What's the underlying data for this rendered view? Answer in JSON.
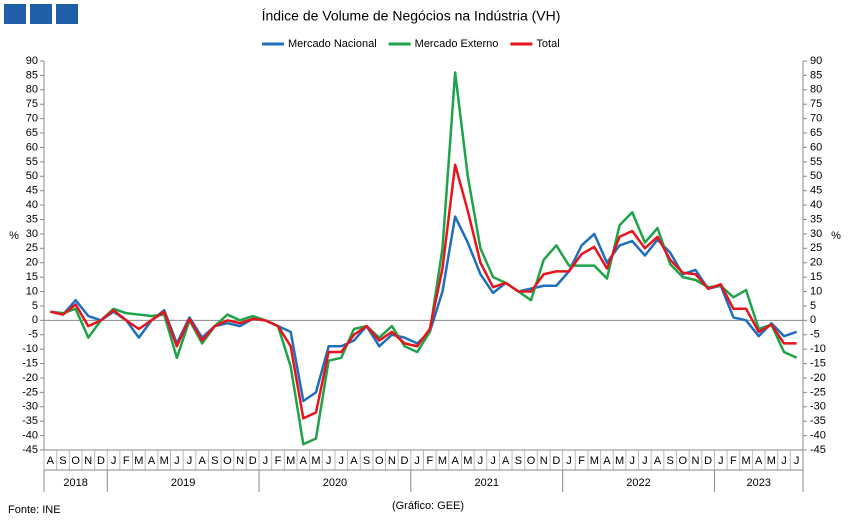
{
  "chart_data": {
    "type": "line",
    "title": "Índice de Volume de Negócios na Indústria (VH)",
    "ylabel": "%",
    "y2label": "%",
    "source": "Fonte: INE",
    "credit": "(Gráfico: GEE)",
    "categories": [
      "A",
      "S",
      "O",
      "N",
      "D",
      "J",
      "F",
      "M",
      "A",
      "M",
      "J",
      "J",
      "A",
      "S",
      "O",
      "N",
      "D",
      "J",
      "F",
      "M",
      "A",
      "M",
      "J",
      "J",
      "A",
      "S",
      "O",
      "N",
      "D",
      "J",
      "F",
      "M",
      "A",
      "M",
      "J",
      "J",
      "A",
      "S",
      "O",
      "N",
      "D",
      "J",
      "F",
      "M",
      "A",
      "M",
      "J",
      "J",
      "A",
      "S",
      "O",
      "N",
      "D",
      "J",
      "F",
      "M",
      "A",
      "M",
      "J",
      "J"
    ],
    "year_groups": [
      {
        "label": "2018",
        "count": 5
      },
      {
        "label": "2019",
        "count": 12
      },
      {
        "label": "2020",
        "count": 12
      },
      {
        "label": "2021",
        "count": 12
      },
      {
        "label": "2022",
        "count": 12
      },
      {
        "label": "2023",
        "count": 7
      }
    ],
    "series": [
      {
        "name": "Mercado Nacional",
        "color": "#1f6fbf",
        "values": [
          3,
          2,
          7,
          1.5,
          0,
          3,
          0,
          -6,
          0,
          3.5,
          -8,
          1,
          -6,
          -2,
          -1,
          -2,
          0.5,
          0,
          -2,
          -4,
          -28,
          -25,
          -9,
          -9,
          -7,
          -2,
          -9,
          -5,
          -6,
          -8,
          -4,
          10,
          36,
          27,
          16,
          9.5,
          13,
          10,
          11,
          12,
          12,
          17,
          26,
          30,
          20,
          26,
          27.5,
          22.5,
          28,
          23.5,
          16,
          17.5,
          11,
          12,
          1,
          0,
          -5.5,
          -1,
          -5.5,
          -4
        ]
      },
      {
        "name": "Mercado Externo",
        "color": "#1fa34a",
        "values": [
          3,
          2.5,
          4,
          -6,
          0,
          4,
          2.5,
          2,
          1.5,
          2,
          -13,
          0,
          -8,
          -2,
          2,
          0,
          1.5,
          0,
          -2,
          -16,
          -43,
          -41,
          -14,
          -13,
          -3,
          -2,
          -6,
          -2,
          -9,
          -11,
          -4,
          25,
          86,
          50,
          25,
          15,
          13,
          10,
          7,
          21,
          26,
          19,
          19,
          19,
          14.5,
          33,
          37.5,
          27,
          32,
          19.5,
          15,
          14,
          11.5,
          12,
          8,
          10.5,
          -3,
          -1.5,
          -11,
          -13
        ]
      },
      {
        "name": "Total",
        "color": "#e8141c",
        "values": [
          3,
          2,
          5.5,
          -2,
          0,
          3.5,
          0,
          -3,
          0,
          3,
          -9,
          0.5,
          -7,
          -2,
          0,
          -1,
          0.5,
          0,
          -2,
          -9,
          -34,
          -32,
          -11,
          -11,
          -5,
          -2,
          -7,
          -4,
          -8,
          -9,
          -3,
          18,
          54,
          38,
          20,
          11.5,
          13,
          10,
          10,
          16,
          17,
          17,
          23,
          25.5,
          18,
          29,
          31,
          25,
          29,
          21,
          16.5,
          16,
          11,
          12.5,
          4,
          4,
          -4,
          -1.5,
          -8,
          -8
        ]
      }
    ],
    "ylim": [
      -45,
      90
    ],
    "yticks": [
      -45,
      -40,
      -35,
      -30,
      -25,
      -20,
      -15,
      -10,
      -5,
      0,
      5,
      10,
      15,
      20,
      25,
      30,
      35,
      40,
      45,
      50,
      55,
      60,
      65,
      70,
      75,
      80,
      85,
      90
    ],
    "y2lim": [
      -45,
      90
    ],
    "y2ticks": [
      -45,
      -40,
      -35,
      -30,
      -25,
      -20,
      -15,
      -10,
      -5,
      0,
      5,
      10,
      15,
      20,
      25,
      30,
      35,
      40,
      45,
      50,
      55,
      60,
      65,
      70,
      75,
      80,
      85,
      90
    ],
    "grid": false,
    "legend": "top"
  }
}
